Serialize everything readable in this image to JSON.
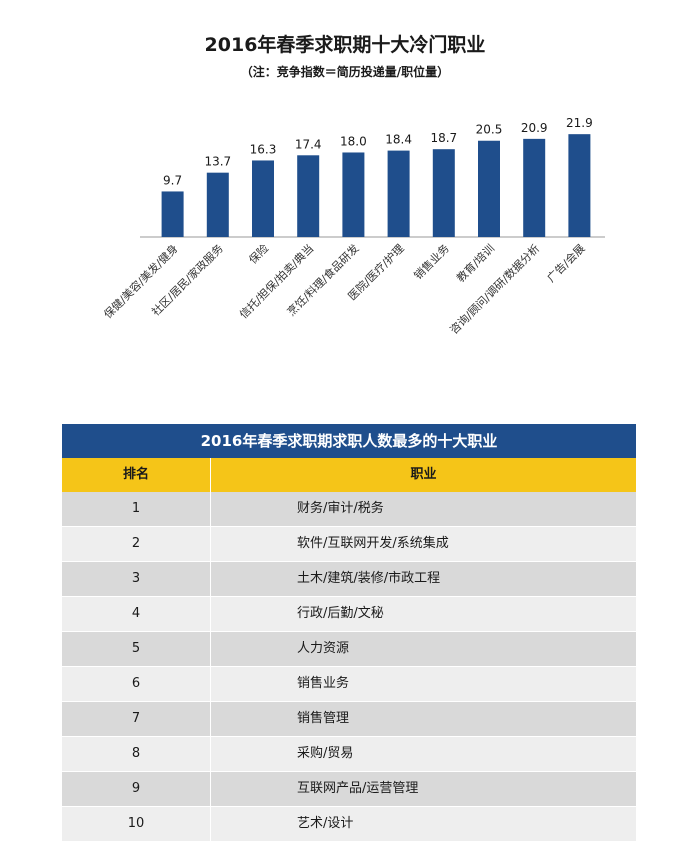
{
  "chart_data": {
    "type": "bar",
    "title": "2016年春季求职期十大冷门职业",
    "subtitle": "（注：竞争指数＝简历投递量/职位量）",
    "categories": [
      "保健/美容/美发/健身",
      "社区/居民/家政服务",
      "保险",
      "信托/担保/拍卖/典当",
      "烹饪/料理/食品研发",
      "医院/医疗/护理",
      "销售业务",
      "教育/培训",
      "咨询/顾问/调研/数据分析",
      "广告/会展"
    ],
    "values": [
      9.7,
      13.7,
      16.3,
      17.4,
      18.0,
      18.4,
      18.7,
      20.5,
      20.9,
      21.9
    ],
    "value_labels": [
      "9.7",
      "13.7",
      "16.3",
      "17.4",
      "18.0",
      "18.4",
      "18.7",
      "20.5",
      "20.9",
      "21.9"
    ],
    "ylim": [
      0,
      23
    ],
    "bar_color": "#1f4e8c",
    "grid": false,
    "legend": "none"
  },
  "table": {
    "title": "2016年春季求职期求职人数最多的十大职业",
    "header": {
      "rank": "排名",
      "job": "职业"
    },
    "rows": [
      {
        "rank": "1",
        "job": "财务/审计/税务"
      },
      {
        "rank": "2",
        "job": "软件/互联网开发/系统集成"
      },
      {
        "rank": "3",
        "job": "土木/建筑/装修/市政工程"
      },
      {
        "rank": "4",
        "job": "行政/后勤/文秘"
      },
      {
        "rank": "5",
        "job": "人力资源"
      },
      {
        "rank": "6",
        "job": "销售业务"
      },
      {
        "rank": "7",
        "job": "销售管理"
      },
      {
        "rank": "8",
        "job": "采购/贸易"
      },
      {
        "rank": "9",
        "job": "互联网产品/运营管理"
      },
      {
        "rank": "10",
        "job": "艺术/设计"
      }
    ],
    "header_color": "#f5c518",
    "title_color": "#1f4e8c"
  }
}
